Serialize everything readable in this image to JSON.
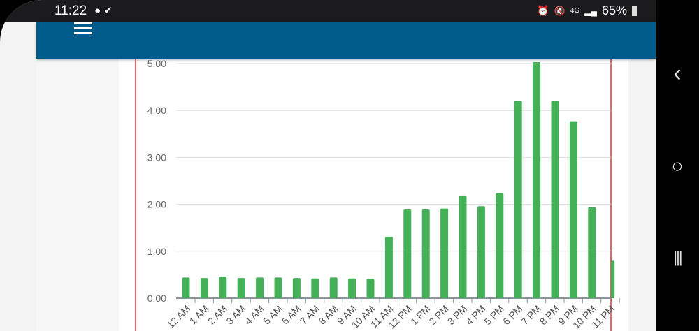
{
  "status_bar": {
    "time": "11:22",
    "left_icons": [
      "chat-bubble-icon",
      "check-download-icon"
    ],
    "right_icons": [
      "alarm-icon",
      "mute-icon",
      "4g-icon",
      "signal-icon"
    ],
    "battery": "65%"
  },
  "app_bar": {
    "menu_icon": "hamburger-menu-icon",
    "color": "#005a8a"
  },
  "nav_bar": {
    "back": "‹",
    "home": "○",
    "recents": "|||"
  },
  "chart_data": {
    "type": "bar",
    "categories": [
      "12 AM",
      "1 AM",
      "2 AM",
      "3 AM",
      "4 AM",
      "5 AM",
      "6 AM",
      "7 AM",
      "8 AM",
      "9 AM",
      "10 AM",
      "11 AM",
      "12 PM",
      "1 PM",
      "2 PM",
      "3 PM",
      "4 PM",
      "5 PM",
      "6 PM",
      "7 PM",
      "8 PM",
      "9 PM",
      "10 PM",
      "11 PM"
    ],
    "values": [
      0.44,
      0.43,
      0.46,
      0.43,
      0.44,
      0.44,
      0.43,
      0.42,
      0.44,
      0.42,
      0.41,
      1.31,
      1.89,
      1.89,
      1.91,
      2.19,
      1.96,
      2.24,
      4.21,
      5.03,
      4.21,
      3.77,
      1.94,
      0.8
    ],
    "yticks": [
      "0.00",
      "1.00",
      "2.00",
      "3.00",
      "4.00",
      "5.00"
    ],
    "ylim": [
      0,
      5
    ],
    "grid": true,
    "bar_color": "#44b058",
    "border_color": "#d9343a"
  }
}
